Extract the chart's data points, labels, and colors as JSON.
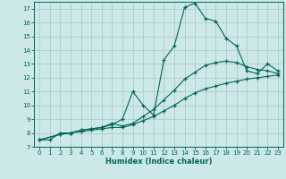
{
  "background_color": "#cce8e8",
  "grid_color": "#b0cccc",
  "line_color": "#006655",
  "xlabel": "Humidex (Indice chaleur)",
  "xlim": [
    -0.5,
    23.5
  ],
  "ylim": [
    7,
    17.5
  ],
  "yticks": [
    7,
    8,
    9,
    10,
    11,
    12,
    13,
    14,
    15,
    16,
    17
  ],
  "xticks": [
    0,
    1,
    2,
    3,
    4,
    5,
    6,
    7,
    8,
    9,
    10,
    11,
    12,
    13,
    14,
    15,
    16,
    17,
    18,
    19,
    20,
    21,
    22,
    23
  ],
  "curve1_x": [
    0,
    1,
    2,
    3,
    4,
    5,
    6,
    7,
    8,
    9,
    10,
    11,
    12,
    13,
    14,
    15,
    16,
    17,
    18,
    19,
    20,
    21,
    22,
    23
  ],
  "curve1_y": [
    7.5,
    7.5,
    8.0,
    8.0,
    8.2,
    8.3,
    8.4,
    8.6,
    9.0,
    11.0,
    10.0,
    9.3,
    13.3,
    14.3,
    17.1,
    17.4,
    16.3,
    16.1,
    14.85,
    14.3,
    12.5,
    12.3,
    13.0,
    12.5
  ],
  "curve2_x": [
    0,
    2,
    3,
    4,
    5,
    6,
    7,
    8,
    9,
    10,
    11,
    12,
    13,
    14,
    15,
    16,
    17,
    18,
    19,
    20,
    21,
    22,
    23
  ],
  "curve2_y": [
    7.5,
    7.9,
    8.0,
    8.2,
    8.3,
    8.4,
    8.7,
    8.5,
    8.7,
    9.2,
    9.7,
    10.4,
    11.1,
    11.9,
    12.4,
    12.9,
    13.1,
    13.2,
    13.1,
    12.8,
    12.6,
    12.5,
    12.3
  ],
  "curve3_x": [
    0,
    2,
    3,
    4,
    5,
    6,
    7,
    8,
    9,
    10,
    11,
    12,
    13,
    14,
    15,
    16,
    17,
    18,
    19,
    20,
    21,
    22,
    23
  ],
  "curve3_y": [
    7.5,
    7.9,
    8.0,
    8.1,
    8.2,
    8.3,
    8.4,
    8.4,
    8.6,
    8.9,
    9.2,
    9.6,
    10.0,
    10.5,
    10.9,
    11.2,
    11.4,
    11.6,
    11.75,
    11.9,
    12.0,
    12.1,
    12.2
  ]
}
